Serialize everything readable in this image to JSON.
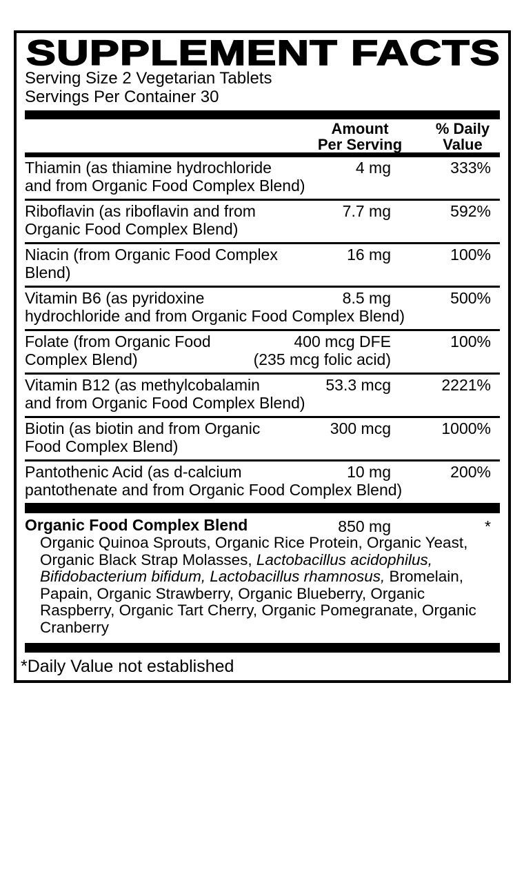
{
  "label": {
    "title": "SUPPLEMENT FACTS",
    "serving_size": "Serving Size 2 Vegetarian Tablets",
    "servings_per_container": "Servings Per Container 30",
    "columns": {
      "amount_line1": "Amount",
      "amount_line2": "Per Serving",
      "dv_line1": "% Daily",
      "dv_line2": "Value"
    },
    "rows": [
      {
        "name1": "Thiamin (as thiamine hydrochloride",
        "name2": "and from Organic Food Complex Blend)",
        "amount1": "4 mg",
        "amount2": "",
        "dv": "333%"
      },
      {
        "name1": "Riboflavin (as riboflavin and from",
        "name2": "Organic Food Complex Blend)",
        "amount1": "7.7 mg",
        "amount2": "",
        "dv": "592%"
      },
      {
        "name1": "Niacin (from Organic Food Complex",
        "name2": "Blend)",
        "amount1": "16 mg",
        "amount2": "",
        "dv": "100%"
      },
      {
        "name1": "Vitamin B6 (as pyridoxine",
        "name2": "hydrochloride and from Organic Food Complex Blend)",
        "amount1": "8.5 mg",
        "amount2": "",
        "dv": "500%"
      },
      {
        "name1": "Folate (from Organic Food",
        "name2": "Complex Blend)",
        "amount1": "400 mcg DFE",
        "amount2": "(235 mcg folic acid)",
        "dv": "100%"
      },
      {
        "name1": "Vitamin B12 (as methylcobalamin",
        "name2": "and from Organic Food Complex Blend)",
        "amount1": "53.3 mcg",
        "amount2": "",
        "dv": "2221%"
      },
      {
        "name1": "Biotin (as biotin and from Organic",
        "name2": "Food Complex Blend)",
        "amount1": "300 mcg",
        "amount2": "",
        "dv": "1000%"
      },
      {
        "name1": "Pantothenic Acid (as d-calcium",
        "name2": "pantothenate and from Organic Food Complex Blend)",
        "amount1": "10 mg",
        "amount2": "",
        "dv": "200%"
      }
    ],
    "blend": {
      "name": "Organic Food Complex Blend",
      "amount": "850 mg",
      "dv": "*",
      "desc_lines": [
        {
          "seg1": "Organic Quinoa Sprouts, Organic Rice Protein, Organic Yeast,",
          "seg2": "",
          "seg3": ""
        },
        {
          "seg1": "Organic Black Strap Molasses, ",
          "seg2": "Lactobacillus acidophilus,",
          "seg3": ""
        },
        {
          "seg1": "",
          "seg2": "Bifidobacterium bifidum, Lactobacillus rhamnosus,",
          "seg3": " Bromelain,"
        },
        {
          "seg1": "Papain, Organic Strawberry, Organic Blueberry, Organic",
          "seg2": "",
          "seg3": ""
        },
        {
          "seg1": "Raspberry, Organic Tart Cherry, Organic Pomegranate, Organic",
          "seg2": "",
          "seg3": ""
        },
        {
          "seg1": "Cranberry",
          "seg2": "",
          "seg3": ""
        }
      ]
    },
    "footnote": "*Daily Value not established",
    "colors": {
      "ink": "#000000",
      "background": "#ffffff"
    }
  }
}
